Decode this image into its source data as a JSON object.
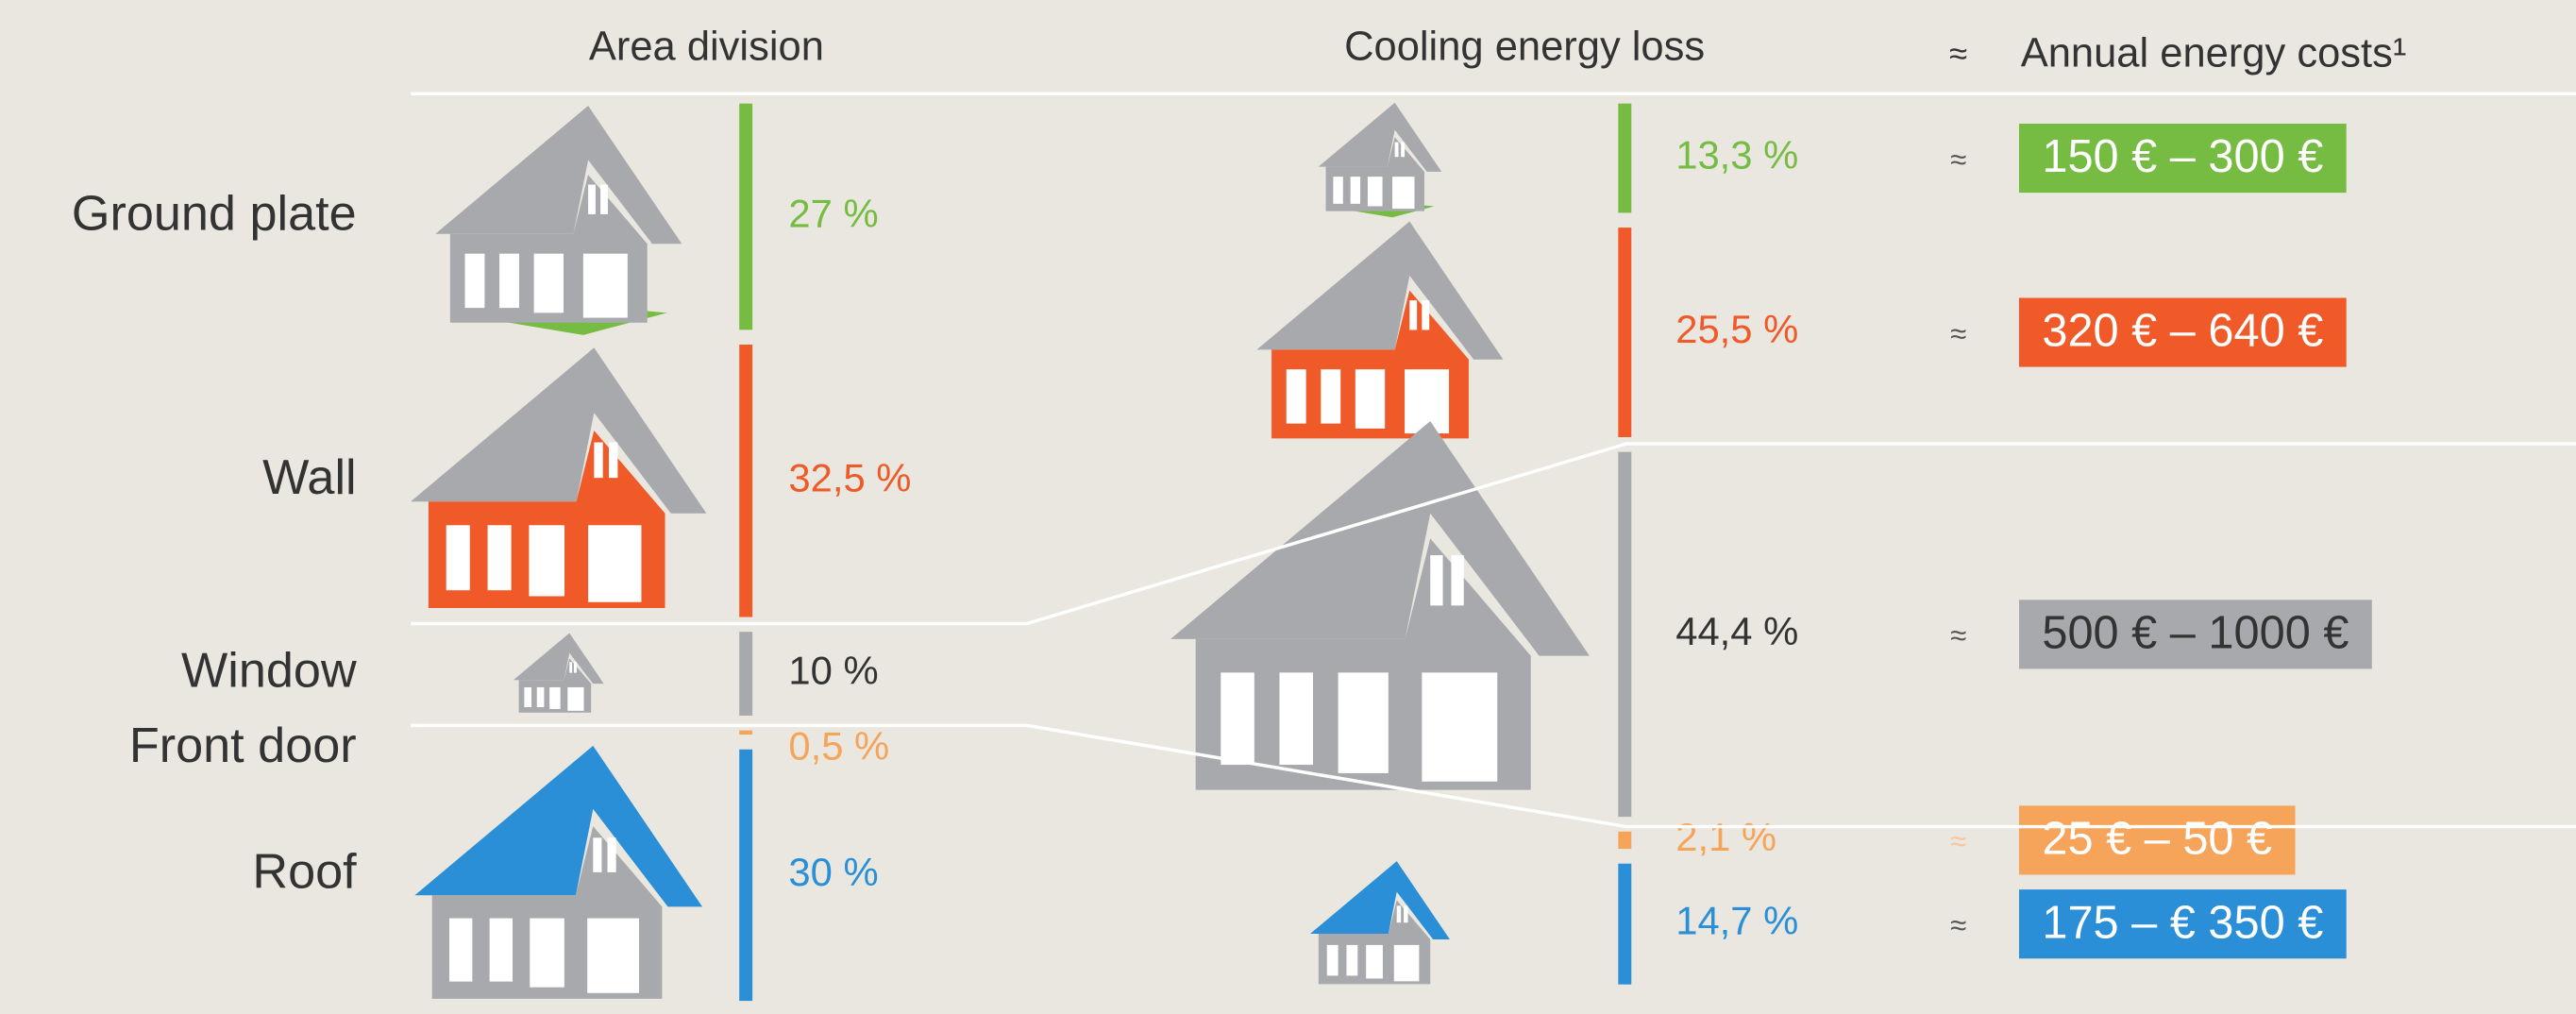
{
  "header": {
    "area": "Area division",
    "loss": "Cooling energy loss",
    "approx": "≈",
    "costs": "Annual energy costs¹"
  },
  "rows": [
    {
      "label": "Ground plate",
      "color": "#76bc43",
      "text_color": "#76bc43",
      "area": 27,
      "area_label": "27 %",
      "loss": 13.3,
      "loss_label": "13,3 %",
      "approx": "≈",
      "cost": "150 € – 300 €",
      "cost_text_color": "#ffffff"
    },
    {
      "label": "Wall",
      "color": "#f05a28",
      "text_color": "#f05a28",
      "area": 32.5,
      "area_label": "32,5 %",
      "loss": 25.5,
      "loss_label": "25,5 %",
      "approx": "≈",
      "cost": "320 € – 640 €",
      "cost_text_color": "#ffffff"
    },
    {
      "label": "Window",
      "color": "#a7a9ac",
      "text_color": "#333333",
      "area": 10,
      "area_label": "10 %",
      "loss": 44.4,
      "loss_label": "44,4 %",
      "approx": "≈",
      "cost": "500 € – 1000 €",
      "cost_text_color": "#333333"
    },
    {
      "label": "Front door",
      "color": "#f6a45a",
      "text_color": "#f6a45a",
      "area": 0.5,
      "area_label": "0,5 %",
      "loss": 2.1,
      "loss_label": "2,1 %",
      "approx": "≈",
      "cost": "25 € – 50 €",
      "cost_text_color": "#ffffff"
    },
    {
      "label": "Roof",
      "color": "#2a8fd6",
      "text_color": "#2a8fd6",
      "area": 30,
      "area_label": "30 %",
      "loss": 14.7,
      "loss_label": "14,7 %",
      "approx": "≈",
      "cost": "175 – € 350 €",
      "cost_text_color": "#ffffff"
    }
  ]
}
